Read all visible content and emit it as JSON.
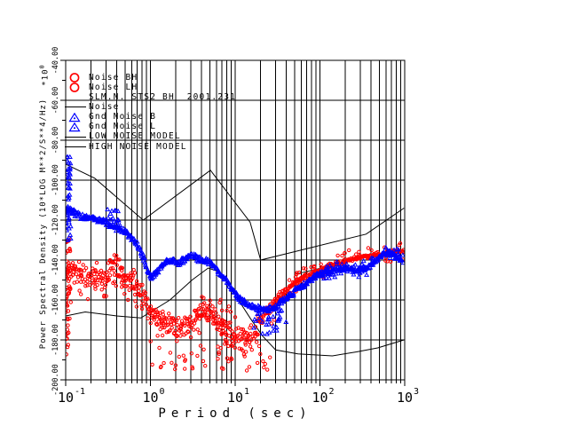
{
  "window": {
    "background": "#ffffff"
  },
  "colors": {
    "red": "#ff0000",
    "blue": "#0000ff",
    "black": "#000000",
    "grid": "#000000"
  },
  "legend": {
    "items": [
      {
        "symbol": "circle",
        "color": "#ff0000",
        "label": "Noise BH"
      },
      {
        "symbol": "circle",
        "color": "#ff0000",
        "label": "Noise LH"
      },
      {
        "symbol": "none",
        "color": "#000000",
        "label": "SLM.N. STS2 BH  2001.231"
      },
      {
        "symbol": "line",
        "color": "#000000",
        "label": "Noise"
      },
      {
        "symbol": "triangle",
        "color": "#0000ff",
        "label": "Gnd Noise B"
      },
      {
        "symbol": "triangle",
        "color": "#0000ff",
        "label": "Gnd Noise L"
      },
      {
        "symbol": "line",
        "color": "#000000",
        "label": "LOW NOISE MODEL"
      },
      {
        "symbol": "line",
        "color": "#000000",
        "label": "HIGH NOISE MODEL"
      }
    ]
  },
  "chart_data": {
    "type": "scatter",
    "title": "",
    "x_label": "Period (sec)",
    "y_label": "Power Spectral Density (10*LOG M**2/S**4/Hz)",
    "y_multiplier_base": "*10",
    "y_multiplier_exp": "0",
    "x_axis": {
      "scale": "log",
      "min": 0.1,
      "max": 1000,
      "tick_base": "10",
      "tick_exponents": [
        "-1",
        "0",
        "1",
        "2",
        "3"
      ]
    },
    "y_axis": {
      "min": -200,
      "max": -40,
      "major_step": 20,
      "minor_step": 10,
      "tick_labels": [
        "-40.00",
        "-60.00",
        "-80.00",
        "-100.00",
        "-120.00",
        "-140.00",
        "-160.00",
        "-180.00",
        "-200.00"
      ],
      "grid": true
    },
    "series": [
      {
        "name": "Noise BH",
        "marker": "circle",
        "color": "#ff0000",
        "seed": 11,
        "density": 1.7,
        "points": [
          [
            0.1,
            -146
          ],
          [
            0.12,
            -144
          ],
          [
            0.15,
            -147
          ],
          [
            0.2,
            -148
          ],
          [
            0.25,
            -147
          ],
          [
            0.3,
            -149
          ],
          [
            0.35,
            -141
          ],
          [
            0.37,
            -139
          ],
          [
            0.42,
            -144
          ],
          [
            0.5,
            -148
          ],
          [
            0.62,
            -150
          ],
          [
            0.73,
            -154
          ],
          [
            0.86,
            -159
          ],
          [
            1.0,
            -166
          ],
          [
            1.2,
            -169
          ],
          [
            1.4,
            -172
          ],
          [
            1.7,
            -172
          ],
          [
            2.1,
            -173
          ],
          [
            2.5,
            -172
          ],
          [
            3.0,
            -173
          ],
          [
            3.6,
            -168
          ],
          [
            4.4,
            -164
          ],
          [
            5.4,
            -167
          ],
          [
            6.5,
            -172
          ],
          [
            7.9,
            -176
          ],
          [
            9.5,
            -179
          ],
          [
            11.5,
            -180
          ],
          [
            14,
            -179
          ],
          [
            17,
            -178
          ],
          [
            21,
            -169
          ],
          [
            27,
            -163
          ],
          [
            34,
            -158
          ],
          [
            45,
            -153
          ],
          [
            62,
            -149
          ],
          [
            89,
            -146
          ],
          [
            130,
            -143
          ],
          [
            184,
            -141
          ],
          [
            266,
            -139
          ],
          [
            383,
            -138
          ],
          [
            551,
            -137
          ],
          [
            750,
            -136
          ],
          [
            980,
            -136
          ]
        ],
        "jitter": [
          {
            "t": [
              0.1,
              0.9
            ],
            "spread": 6.5
          },
          {
            "t": [
              0.9,
              20
            ],
            "spread": 7
          },
          {
            "t": [
              20,
              40
            ],
            "spread": 3
          },
          {
            "t": [
              40,
              1000
            ],
            "spread": 1.3
          }
        ]
      },
      {
        "name": "Noise LH",
        "marker": "circle",
        "color": "#ff0000",
        "seed": 22,
        "ref": "Noise BH",
        "blobs": [
          {
            "t": [
              0.1,
              0.115
            ],
            "db": [
              -128,
              -190
            ],
            "n": 55
          },
          {
            "t": [
              0.12,
              0.8
            ],
            "rel": [
              -12,
              -2
            ],
            "n": 30
          },
          {
            "t": [
              1,
              30
            ],
            "db": [
              -168,
              -197
            ],
            "n": 80
          },
          {
            "t": [
              4,
              9
            ],
            "db": [
              -158,
              -172
            ],
            "n": 18
          },
          {
            "t": [
              35,
              1000
            ],
            "rel": [
              -5,
              5
            ],
            "n": 55
          }
        ]
      },
      {
        "name": "Gnd Noise B",
        "marker": "triangle",
        "color": "#0000ff",
        "seed": 33,
        "density": 1.7,
        "points": [
          [
            0.1,
            -115
          ],
          [
            0.12,
            -116
          ],
          [
            0.15,
            -118
          ],
          [
            0.2,
            -119
          ],
          [
            0.25,
            -120
          ],
          [
            0.32,
            -122
          ],
          [
            0.4,
            -124
          ],
          [
            0.5,
            -126
          ],
          [
            0.62,
            -129
          ],
          [
            0.73,
            -134
          ],
          [
            0.86,
            -141
          ],
          [
            1.0,
            -149
          ],
          [
            1.1,
            -147
          ],
          [
            1.3,
            -144
          ],
          [
            1.5,
            -141
          ],
          [
            1.8,
            -140
          ],
          [
            2.1,
            -142
          ],
          [
            2.4,
            -140
          ],
          [
            2.9,
            -138
          ],
          [
            3.3,
            -138
          ],
          [
            3.9,
            -140
          ],
          [
            4.6,
            -140
          ],
          [
            5.4,
            -142
          ],
          [
            6.3,
            -146
          ],
          [
            7.5,
            -149
          ],
          [
            9.1,
            -154
          ],
          [
            11,
            -159
          ],
          [
            14,
            -162
          ],
          [
            18,
            -164
          ],
          [
            23,
            -165
          ],
          [
            29,
            -164
          ],
          [
            37,
            -160
          ],
          [
            46,
            -157
          ],
          [
            62,
            -153
          ],
          [
            82,
            -149
          ],
          [
            110,
            -146
          ],
          [
            150,
            -145
          ],
          [
            200,
            -144
          ],
          [
            260,
            -145
          ],
          [
            350,
            -144
          ],
          [
            440,
            -141
          ],
          [
            560,
            -137
          ],
          [
            650,
            -136
          ],
          [
            790,
            -138
          ],
          [
            930,
            -140
          ]
        ],
        "jitter": [
          {
            "t": [
              0.1,
              1000
            ],
            "spread": 1.8
          }
        ]
      },
      {
        "name": "Gnd Noise L",
        "marker": "triangle",
        "color": "#0000ff",
        "seed": 44,
        "ref": "Gnd Noise B",
        "blobs": [
          {
            "t": [
              0.1,
              0.115
            ],
            "db": [
              -88,
              -130
            ],
            "n": 45
          },
          {
            "t": [
              0.3,
              0.45
            ],
            "rel": [
              2,
              10
            ],
            "n": 14
          },
          {
            "t": [
              16,
              40
            ],
            "rel": [
              -13,
              -2
            ],
            "n": 28
          },
          {
            "t": [
              90,
              1000
            ],
            "rel": [
              -4,
              4
            ],
            "n": 50
          }
        ]
      },
      {
        "name": "Noise",
        "marker": "line",
        "color": "#000000",
        "points": [
          [
            52,
            -147
          ],
          [
            130,
            -143
          ]
        ]
      },
      {
        "name": "LOW NOISE MODEL",
        "marker": "line",
        "color": "#000000",
        "points": [
          [
            0.1,
            -168
          ],
          [
            0.17,
            -166
          ],
          [
            0.4,
            -168
          ],
          [
            0.77,
            -169
          ],
          [
            1.7,
            -160
          ],
          [
            3.1,
            -150
          ],
          [
            4.8,
            -144
          ],
          [
            6.6,
            -146
          ],
          [
            9.5,
            -156
          ],
          [
            15,
            -169
          ],
          [
            21,
            -178
          ],
          [
            30,
            -185
          ],
          [
            55,
            -187
          ],
          [
            140,
            -188
          ],
          [
            270,
            -186
          ],
          [
            480,
            -184
          ],
          [
            980,
            -180
          ]
        ]
      },
      {
        "name": "HIGH NOISE MODEL",
        "marker": "line",
        "color": "#000000",
        "points": [
          [
            0.1,
            -92
          ],
          [
            0.22,
            -99
          ],
          [
            0.82,
            -120
          ],
          [
            5.1,
            -95
          ],
          [
            15,
            -121
          ],
          [
            20,
            -140
          ],
          [
            350,
            -127
          ],
          [
            980,
            -114
          ]
        ]
      }
    ]
  }
}
